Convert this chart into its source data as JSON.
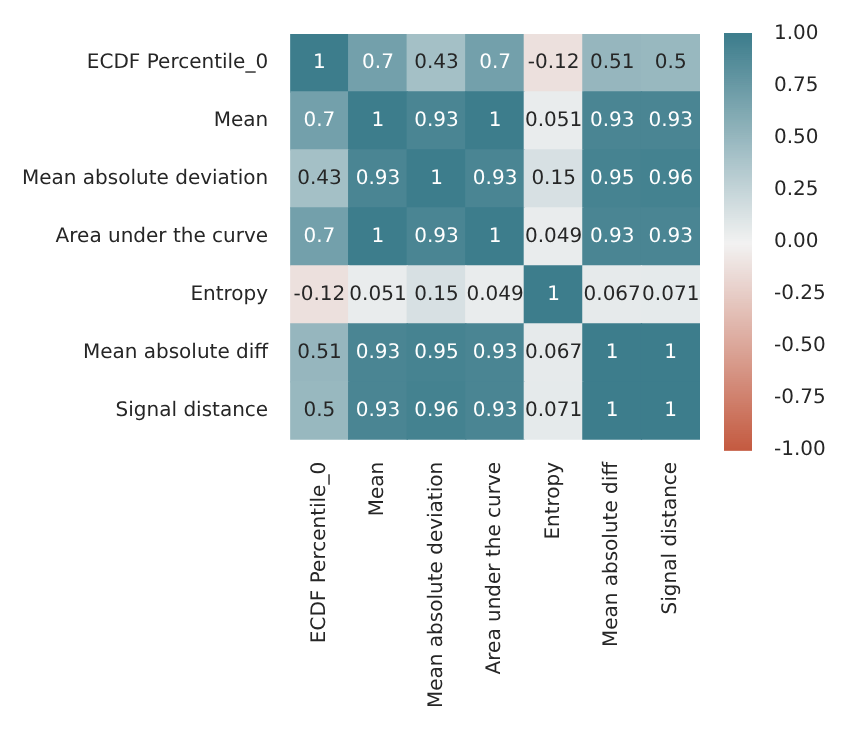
{
  "chart_data": {
    "type": "heatmap",
    "categories": [
      "ECDF Percentile_0",
      "Mean",
      "Mean absolute deviation",
      "Area under the curve",
      "Entropy",
      "Mean absolute diff",
      "Signal distance"
    ],
    "y_categories": [
      "ECDF Percentile_0",
      "Mean",
      "Mean absolute deviation",
      "Area under the curve",
      "Entropy",
      "Mean absolute diff",
      "Signal distance"
    ],
    "cells": [
      [
        1,
        0.7,
        0.43,
        0.7,
        -0.12,
        0.51,
        0.5
      ],
      [
        0.7,
        1,
        0.93,
        1,
        0.051,
        0.93,
        0.93
      ],
      [
        0.43,
        0.93,
        1,
        0.93,
        0.15,
        0.95,
        0.96
      ],
      [
        0.7,
        1,
        0.93,
        1,
        0.049,
        0.93,
        0.93
      ],
      [
        -0.12,
        0.051,
        0.15,
        0.049,
        1,
        0.067,
        0.071
      ],
      [
        0.51,
        0.93,
        0.95,
        0.93,
        0.067,
        1,
        1
      ],
      [
        0.5,
        0.93,
        0.96,
        0.93,
        0.071,
        1,
        1
      ]
    ],
    "data_labels": true,
    "clim": [
      -1,
      1
    ],
    "cticks": [
      {
        "value": -1,
        "label": "-1.00"
      },
      {
        "value": -0.75,
        "label": "-0.75"
      },
      {
        "value": -0.5,
        "label": "-0.50"
      },
      {
        "value": -0.25,
        "label": "-0.25"
      },
      {
        "value": 0,
        "label": "0.00"
      },
      {
        "value": 0.25,
        "label": "0.25"
      },
      {
        "value": 0.5,
        "label": "0.50"
      },
      {
        "value": 0.75,
        "label": "0.75"
      },
      {
        "value": 1,
        "label": "1.00"
      }
    ]
  }
}
